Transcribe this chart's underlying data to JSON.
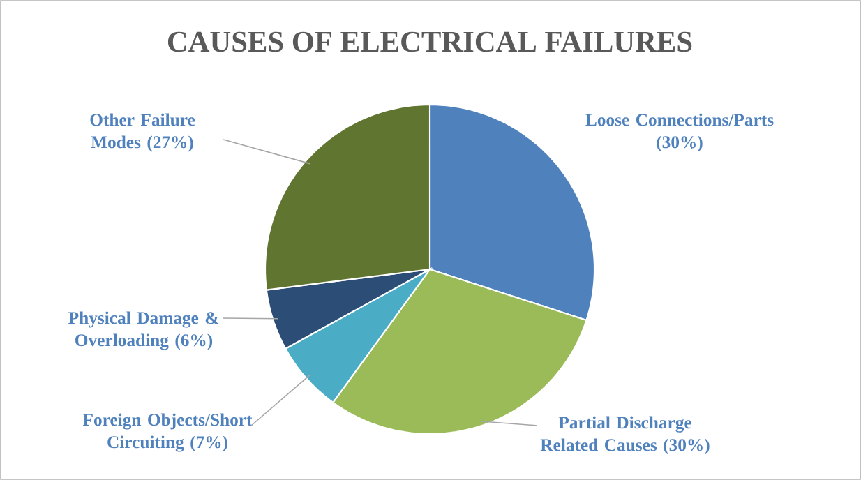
{
  "chart_data": {
    "type": "pie",
    "title": "CAUSES OF ELECTRICAL FAILURES",
    "categories": [
      "Loose Connections/Parts",
      "Partial Discharge Related Causes",
      "Foreign Objects/Short Circuiting",
      "Physical Damage & Overloading",
      "Other Failure Modes"
    ],
    "values": [
      30,
      30,
      7,
      6,
      27
    ],
    "value_labels": [
      "(30%)",
      "(30%)",
      "(7%)",
      "(6%)",
      "(27%)"
    ],
    "colors": [
      "#4f81bd",
      "#9bbb59",
      "#4bacc6",
      "#2c4d75",
      "#5f7530"
    ]
  }
}
